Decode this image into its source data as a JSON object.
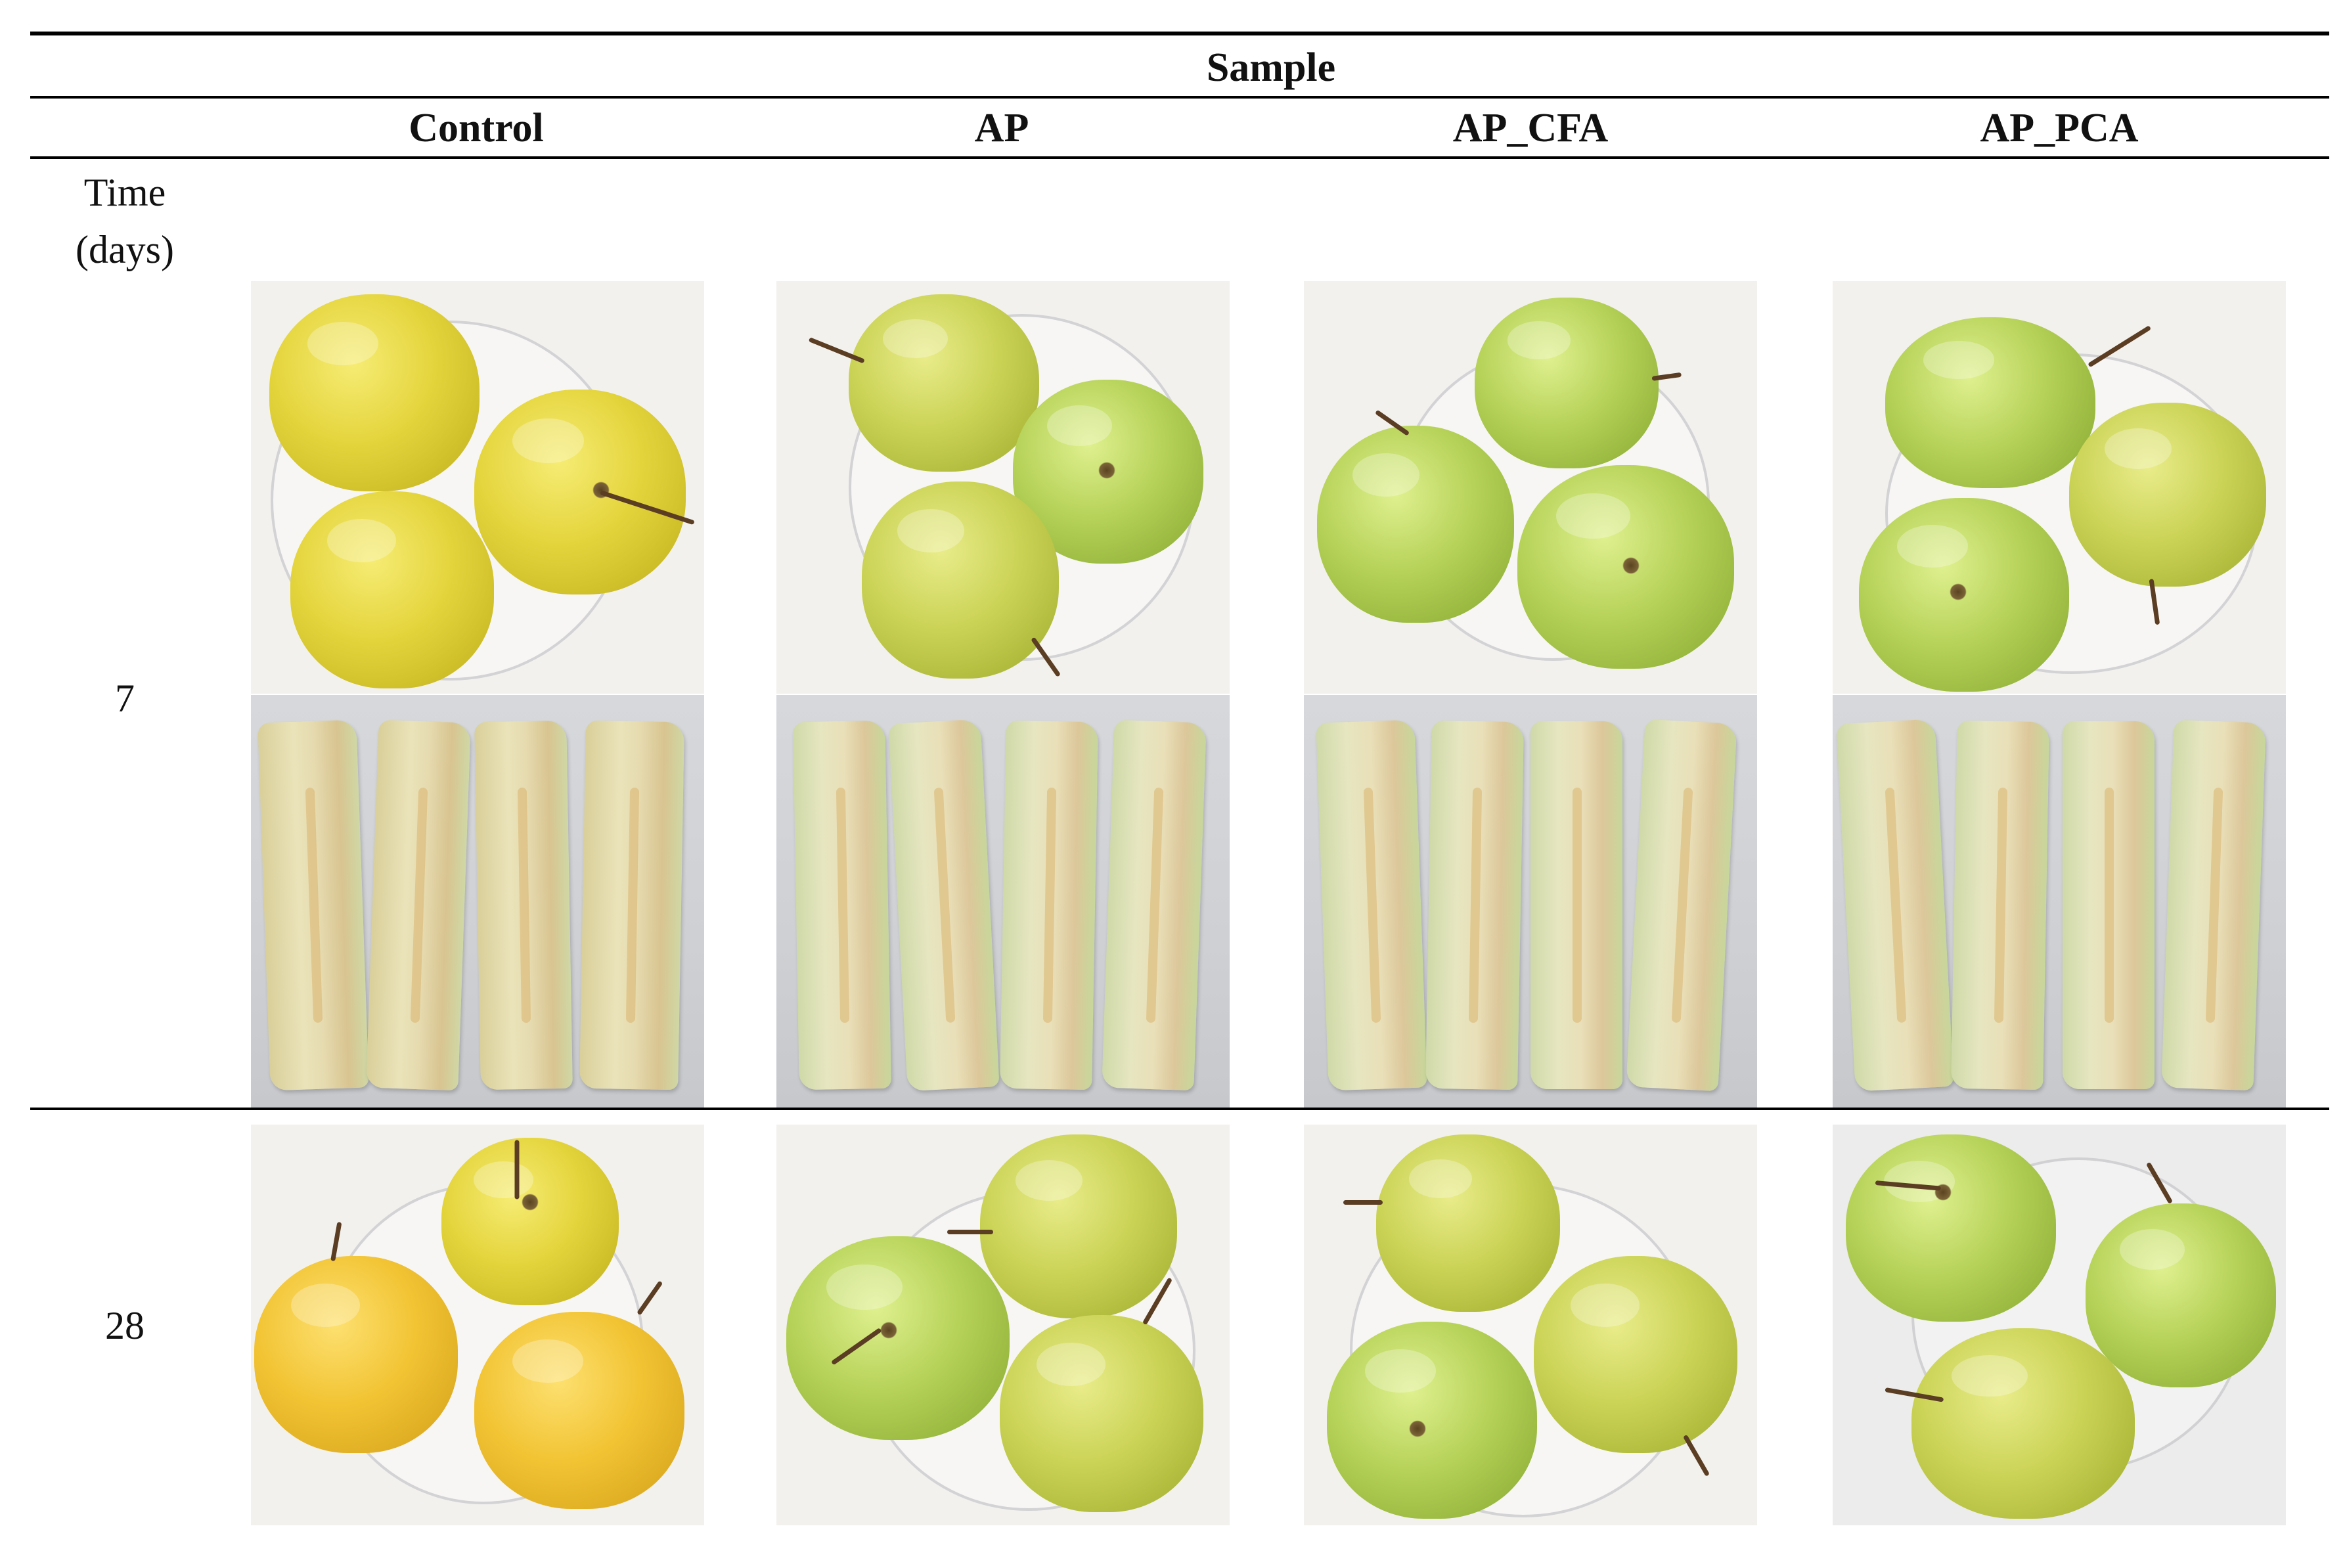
{
  "table": {
    "header": "Sample",
    "columns": [
      "Control",
      "AP",
      "AP_CFA",
      "AP_PCA"
    ],
    "row_header": "Time\n(days)",
    "rows": [
      {
        "time": "7"
      },
      {
        "time": "28"
      }
    ]
  }
}
